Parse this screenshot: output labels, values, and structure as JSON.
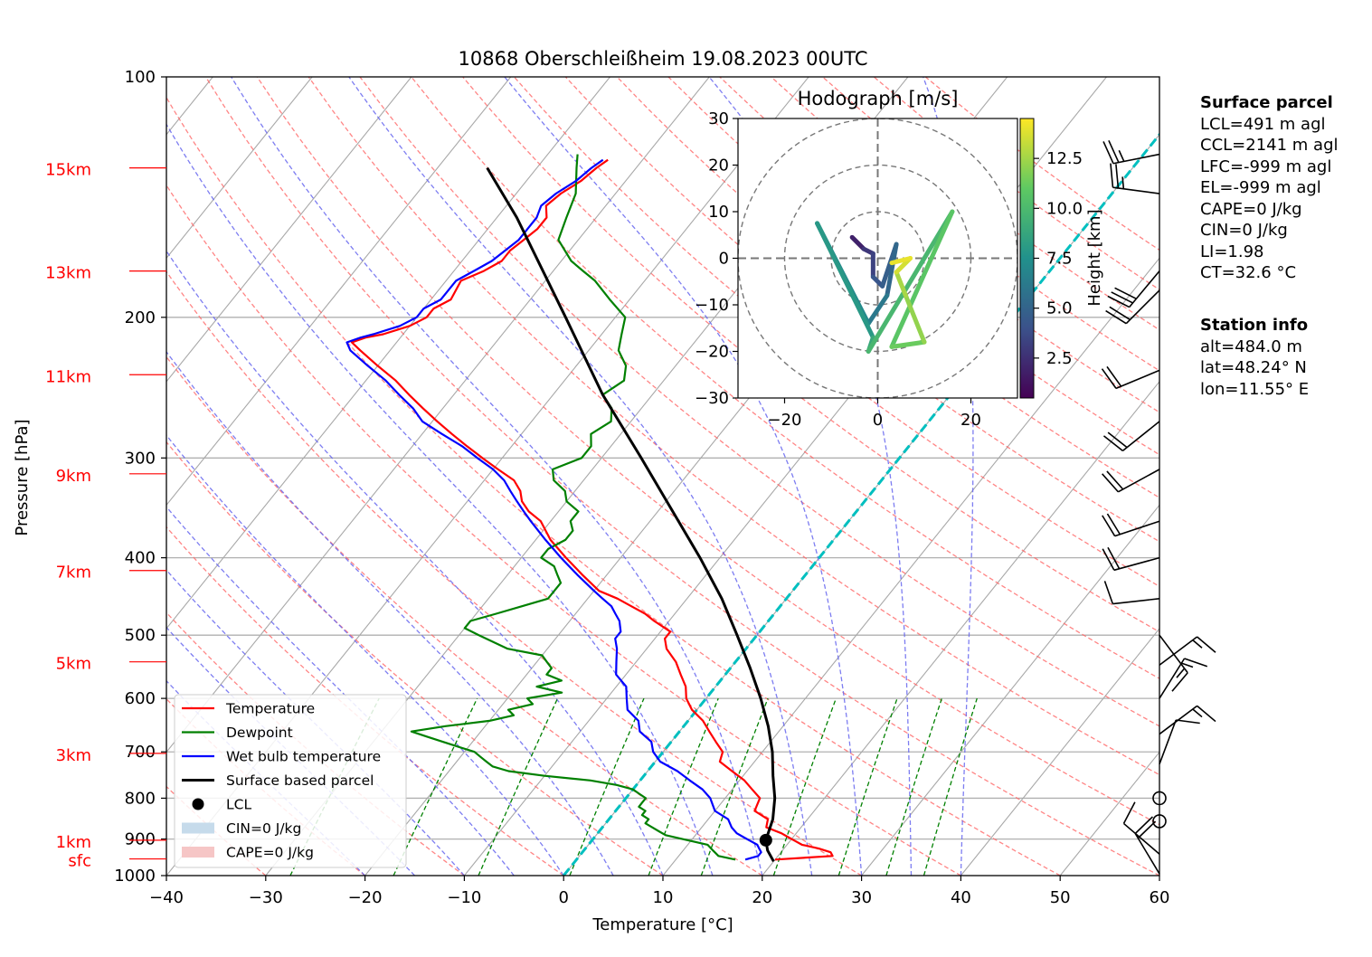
{
  "chart_data": {
    "type": "line",
    "title": "10868 Oberschleißheim 19.08.2023 00UTC",
    "xlabel": "Temperature [°C]",
    "ylabel": "Pressure [hPa]",
    "xlim": [
      -40,
      60
    ],
    "ylim": [
      1000,
      100
    ],
    "y_scale": "log",
    "skew": "skew-T diagram",
    "x_ticks": [
      "−40",
      "−30",
      "−20",
      "−10",
      "0",
      "10",
      "20",
      "30",
      "40",
      "50",
      "60"
    ],
    "y_ticks": [
      "100",
      "200",
      "300",
      "400",
      "500",
      "600",
      "700",
      "800",
      "900",
      "1000"
    ],
    "height_labels": [
      {
        "label": "15km",
        "p": 130
      },
      {
        "label": "13km",
        "p": 175
      },
      {
        "label": "11km",
        "p": 236
      },
      {
        "label": "9km",
        "p": 314
      },
      {
        "label": "7km",
        "p": 415
      },
      {
        "label": "5km",
        "p": 540
      },
      {
        "label": "3km",
        "p": 703
      },
      {
        "label": "1km",
        "p": 903
      },
      {
        "label": "sfc",
        "p": 953
      }
    ],
    "series": [
      {
        "name": "Temperature",
        "color": "#ff0000",
        "p": [
          955,
          945,
          935,
          925,
          915,
          905,
          895,
          885,
          870,
          850,
          830,
          800,
          780,
          760,
          740,
          720,
          700,
          680,
          660,
          640,
          620,
          600,
          580,
          560,
          540,
          520,
          505,
          495,
          480,
          470,
          460,
          450,
          440,
          420,
          400,
          380,
          360,
          350,
          340,
          330,
          320,
          310,
          300,
          290,
          280,
          270,
          260,
          250,
          240,
          230,
          220,
          215,
          212,
          210,
          205,
          200,
          195,
          190,
          180,
          175,
          170,
          165,
          160,
          155,
          150,
          145,
          140,
          135,
          130,
          127
        ],
        "t": [
          20,
          25.5,
          25,
          23.5,
          21.5,
          20.5,
          19.5,
          18.5,
          16.5,
          16,
          14,
          13.5,
          12,
          10.5,
          8.5,
          6.5,
          6,
          4.5,
          3,
          1.5,
          -0.5,
          -2,
          -3,
          -4.5,
          -6,
          -8,
          -9,
          -9,
          -11.5,
          -13,
          -15,
          -17,
          -19.5,
          -22.5,
          -25.5,
          -28.5,
          -31,
          -33,
          -34.5,
          -35.5,
          -37,
          -39.5,
          -42,
          -44.5,
          -47,
          -49.5,
          -52,
          -54.5,
          -57,
          -60,
          -63,
          -64.5,
          -63.5,
          -62,
          -60,
          -59,
          -59,
          -58,
          -58.5,
          -57,
          -56,
          -56,
          -55.5,
          -55,
          -55,
          -56,
          -55.5,
          -54.5,
          -54,
          -53.5
        ]
      },
      {
        "name": "Dewpoint",
        "color": "#008000",
        "p": [
          955,
          945,
          930,
          915,
          900,
          890,
          880,
          870,
          860,
          850,
          840,
          830,
          820,
          810,
          800,
          790,
          780,
          770,
          760,
          750,
          740,
          730,
          720,
          710,
          700,
          690,
          680,
          670,
          660,
          650,
          640,
          630,
          620,
          610,
          600,
          590,
          580,
          570,
          560,
          550,
          540,
          530,
          520,
          510,
          500,
          490,
          480,
          470,
          460,
          450,
          440,
          430,
          420,
          410,
          400,
          390,
          380,
          370,
          360,
          350,
          340,
          330,
          320,
          310,
          300,
          290,
          280,
          270,
          260,
          250,
          240,
          230,
          220,
          210,
          200,
          190,
          180,
          175,
          170,
          160,
          150,
          140,
          130,
          125
        ],
        "td": [
          16,
          14,
          13,
          12,
          9,
          7,
          6,
          5,
          4,
          4,
          3,
          3,
          2,
          2,
          2,
          1,
          0,
          -2,
          -5,
          -10,
          -14,
          -16,
          -17,
          -18,
          -19,
          -21,
          -23,
          -25,
          -27,
          -24,
          -20,
          -18,
          -19,
          -17,
          -18,
          -15,
          -18,
          -16,
          -18,
          -18,
          -19,
          -20,
          -24,
          -26,
          -28,
          -30,
          -30,
          -28,
          -26,
          -24,
          -24,
          -24,
          -25,
          -26,
          -28,
          -28,
          -27,
          -27,
          -28,
          -28,
          -30,
          -31,
          -33,
          -34,
          -32,
          -32,
          -33,
          -32,
          -33,
          -35,
          -34,
          -35,
          -37,
          -38,
          -39,
          -42,
          -45,
          -47,
          -49,
          -52,
          -53,
          -54,
          -56,
          -57
        ]
      },
      {
        "name": "Wet bulb temperature",
        "color": "#0000ff",
        "p": [
          955,
          945,
          935,
          925,
          915,
          905,
          895,
          885,
          870,
          850,
          830,
          800,
          780,
          760,
          740,
          720,
          700,
          680,
          660,
          640,
          620,
          600,
          580,
          560,
          540,
          520,
          505,
          495,
          480,
          470,
          460,
          450,
          440,
          420,
          400,
          380,
          360,
          350,
          340,
          330,
          320,
          310,
          300,
          290,
          280,
          270,
          260,
          250,
          240,
          230,
          220,
          215,
          212,
          210,
          205,
          200,
          195,
          190,
          180,
          175,
          170,
          165,
          160,
          155,
          150,
          145,
          140,
          135,
          130,
          127
        ],
        "tw": [
          17,
          18,
          18,
          17.5,
          17,
          16,
          15,
          14,
          13,
          12,
          10,
          8.5,
          7,
          5,
          3,
          0.5,
          -1,
          -2,
          -4,
          -5,
          -7,
          -8,
          -9,
          -11,
          -12,
          -13,
          -14,
          -14,
          -15,
          -16,
          -17,
          -18.5,
          -20,
          -23,
          -26,
          -29,
          -32,
          -33.5,
          -35,
          -36.5,
          -38,
          -40,
          -42.5,
          -45,
          -48,
          -51,
          -53,
          -55.5,
          -58,
          -61,
          -64,
          -65,
          -64,
          -63,
          -61,
          -60,
          -60,
          -59,
          -59,
          -58,
          -57,
          -56.5,
          -56,
          -56,
          -56,
          -56.5,
          -56,
          -55,
          -54.5,
          -54
        ]
      },
      {
        "name": "Surface based parcel",
        "color": "#000000",
        "p": [
          960,
          930,
          903,
          850,
          800,
          750,
          700,
          650,
          600,
          550,
          500,
          450,
          400,
          350,
          300,
          250,
          200,
          150,
          130
        ],
        "t": [
          20,
          18.5,
          17.5,
          16.5,
          15,
          13,
          11,
          8.5,
          5.5,
          2,
          -2,
          -6.5,
          -12,
          -18.5,
          -26,
          -35,
          -45,
          -58,
          -65
        ]
      }
    ],
    "lcl": {
      "name": "LCL",
      "p": 903,
      "t": 17.5
    },
    "legend": [
      "Temperature",
      "Dewpoint",
      "Wet bulb temperature",
      "Surface based parcel",
      "LCL",
      "CIN=0 J/kg",
      "CAPE=0 J/kg"
    ],
    "legend_position": "lower-left",
    "hodograph": {
      "title": "Hodograph [m/s]",
      "xlim": [
        -30,
        30
      ],
      "ylim": [
        -30,
        30
      ],
      "x_ticks": [
        "−20",
        "0",
        "20"
      ],
      "y_ticks": [
        "30",
        "20",
        "10",
        "0",
        "−10",
        "−20",
        "−30"
      ],
      "colorbar_label": "Height [km]",
      "colorbar_ticks": [
        "12.5",
        "10.0",
        "7.5",
        "5.0",
        "2.5"
      ],
      "points": [
        {
          "u": -5.5,
          "v": 4.5,
          "h": 0.5
        },
        {
          "u": -3,
          "v": 2,
          "h": 1.5
        },
        {
          "u": -1,
          "v": 1,
          "h": 2.5
        },
        {
          "u": -1,
          "v": -4,
          "h": 3
        },
        {
          "u": 1,
          "v": -6,
          "h": 4
        },
        {
          "u": 4,
          "v": 3,
          "h": 4.5
        },
        {
          "u": 2,
          "v": -8,
          "h": 5
        },
        {
          "u": -2,
          "v": -14,
          "h": 6
        },
        {
          "u": -13,
          "v": 7.5,
          "h": 7
        },
        {
          "u": -1,
          "v": -17,
          "h": 8
        },
        {
          "u": -2,
          "v": -20,
          "h": 9
        },
        {
          "u": 16,
          "v": 10,
          "h": 10
        },
        {
          "u": 3,
          "v": -19,
          "h": 11
        },
        {
          "u": 10,
          "v": -18,
          "h": 11.5
        },
        {
          "u": 6,
          "v": -8,
          "h": 12.5
        },
        {
          "u": 4,
          "v": -3,
          "h": 13
        },
        {
          "u": 7,
          "v": 0,
          "h": 14
        },
        {
          "u": 3,
          "v": -1,
          "h": 14.5
        }
      ]
    },
    "wind_barbs": [
      {
        "p": 125,
        "u": 15,
        "v": 3
      },
      {
        "p": 140,
        "u": 15,
        "v": -2
      },
      {
        "p": 175,
        "u": 10,
        "v": 12
      },
      {
        "p": 185,
        "u": 8,
        "v": 8
      },
      {
        "p": 233,
        "u": 12,
        "v": 5
      },
      {
        "p": 270,
        "u": 10,
        "v": 8
      },
      {
        "p": 310,
        "u": 11,
        "v": 6
      },
      {
        "p": 360,
        "u": 12,
        "v": 4
      },
      {
        "p": 400,
        "u": 11,
        "v": 3
      },
      {
        "p": 450,
        "u": 9,
        "v": 1
      },
      {
        "p": 500,
        "u": -6,
        "v": 8
      },
      {
        "p": 545,
        "u": -8,
        "v": -6
      },
      {
        "p": 600,
        "u": -5,
        "v": -8
      },
      {
        "p": 665,
        "u": -8,
        "v": -6
      },
      {
        "p": 725,
        "u": -3,
        "v": -8
      },
      {
        "p": 800,
        "u": 0,
        "v": 0
      },
      {
        "p": 855,
        "u": 0,
        "v": 0
      },
      {
        "p": 940,
        "u": 7,
        "v": -6
      },
      {
        "p": 995,
        "u": 6,
        "v": -10
      }
    ],
    "surface_parcel": {
      "title": "Surface parcel",
      "lines": [
        "LCL=491 m agl",
        "CCL=2141 m agl",
        "LFC=-999 m agl",
        "EL=-999 m agl",
        "CAPE=0 J/kg",
        "CIN=0 J/kg",
        "LI=1.98",
        "CT=32.6 °C"
      ]
    },
    "station_info": {
      "title": "Station info",
      "lines": [
        "alt=484.0 m",
        "lat=48.24° N",
        "lon=11.55° E"
      ]
    },
    "colors": {
      "temperature": "#ff0000",
      "dewpoint": "#008000",
      "wetbulb": "#0000ff",
      "parcel": "#000000",
      "isotherm_zero": "#00bfbf",
      "dry_adiabat": "#ff6666",
      "moist_adiabat": "#6666ee",
      "mixing_ratio": "#008000",
      "cin": "#c6dbeb",
      "cape": "#f6c6c6"
    }
  }
}
